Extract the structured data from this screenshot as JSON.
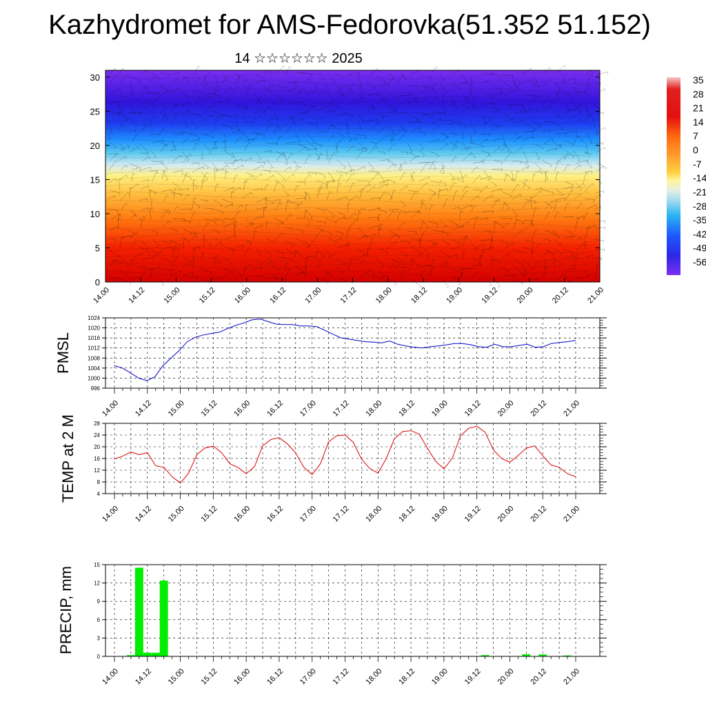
{
  "title": "Kazhydromet for AMS-Fedorovka(51.352 51.152)",
  "subtitle": "14 ☆☆☆☆☆☆ 2025",
  "colors": {
    "pmsl_line": "#0000cc",
    "temp_line": "#dd0000",
    "precip_bar": "#00ee00"
  },
  "chart_data": [
    {
      "type": "heatmap",
      "name": "cross-section",
      "xlabels": [
        "14.00",
        "14.12",
        "15.00",
        "15.12",
        "16.00",
        "16.12",
        "17.00",
        "17.12",
        "18.00",
        "18.12",
        "19.00",
        "19.12",
        "20.00",
        "20.12",
        "21.00"
      ],
      "yticks": [
        0,
        5,
        10,
        15,
        20,
        25,
        30
      ],
      "ylim": [
        0,
        31
      ],
      "colorbar_labels": [
        "35",
        "28",
        "21",
        "14",
        "7",
        "0",
        "-7",
        "-14",
        "-21",
        "-28",
        "-35",
        "-42",
        "-49",
        "-56"
      ]
    },
    {
      "type": "line",
      "name": "pmsl",
      "ylabel": "PMSL",
      "xlabels": [
        "14.00",
        "14.12",
        "15.00",
        "15.12",
        "16.00",
        "16.12",
        "17.00",
        "17.12",
        "18.00",
        "18.12",
        "19.00",
        "19.12",
        "20.00",
        "20.12",
        "21.00"
      ],
      "yticks": [
        996,
        1000,
        1004,
        1008,
        1012,
        1016,
        1020,
        1024
      ],
      "ylim": [
        996,
        1024
      ],
      "values": [
        1005.0,
        1004.0,
        1002.0,
        1000.0,
        999.0,
        1000.5,
        1005.0,
        1008.0,
        1011.0,
        1014.5,
        1016.3,
        1017.2,
        1017.8,
        1018.3,
        1019.8,
        1021.0,
        1022.0,
        1023.2,
        1023.5,
        1022.5,
        1021.5,
        1021.3,
        1021.3,
        1020.8,
        1020.8,
        1020.5,
        1019.0,
        1017.5,
        1016.0,
        1015.5,
        1015.0,
        1014.5,
        1014.3,
        1014.0,
        1014.8,
        1013.5,
        1012.8,
        1012.3,
        1012.0,
        1012.5,
        1012.8,
        1013.2,
        1013.8,
        1013.8,
        1013.3,
        1012.5,
        1012.3,
        1013.5,
        1012.5,
        1012.5,
        1013.0,
        1013.5,
        1012.3,
        1012.5,
        1013.8,
        1014.2,
        1014.5,
        1015.0
      ]
    },
    {
      "type": "line",
      "name": "temp",
      "ylabel": "TEMP at 2 M",
      "xlabels": [
        "14.00",
        "14.12",
        "15.00",
        "15.12",
        "16.00",
        "16.12",
        "17.00",
        "17.12",
        "18.00",
        "18.12",
        "19.00",
        "19.12",
        "20.00",
        "20.12",
        "21.00"
      ],
      "yticks": [
        4,
        8,
        12,
        16,
        20,
        24,
        28
      ],
      "ylim": [
        4,
        28
      ],
      "values": [
        15.8,
        16.8,
        18.2,
        17.3,
        18.0,
        13.5,
        13.0,
        9.8,
        7.6,
        11.0,
        17.3,
        19.6,
        20.2,
        18.0,
        14.2,
        12.9,
        10.8,
        13.2,
        20.3,
        22.5,
        23.1,
        21.0,
        17.9,
        13.0,
        10.5,
        14.2,
        21.7,
        23.8,
        24.0,
        21.5,
        15.8,
        12.6,
        11.0,
        16.0,
        22.8,
        25.2,
        25.5,
        24.3,
        19.5,
        15.0,
        12.5,
        16.0,
        23.7,
        26.3,
        27.0,
        25.0,
        19.0,
        16.0,
        14.7,
        17.0,
        19.5,
        20.3,
        17.0,
        13.8,
        13.0,
        10.8,
        9.8
      ]
    },
    {
      "type": "bar",
      "name": "precip",
      "ylabel": "PRECIP, mm",
      "xlabels": [
        "14.00",
        "14.12",
        "15.00",
        "15.12",
        "16.00",
        "16.12",
        "17.00",
        "17.12",
        "18.00",
        "18.12",
        "19.00",
        "19.12",
        "20.00",
        "20.12",
        "21.00"
      ],
      "yticks": [
        0,
        3,
        6,
        9,
        12,
        15
      ],
      "ylim": [
        0,
        15
      ],
      "values": [
        0,
        0,
        0.2,
        14.5,
        0.6,
        0.6,
        12.4,
        0,
        0,
        0,
        0,
        0,
        0,
        0,
        0,
        0,
        0,
        0,
        0,
        0,
        0,
        0,
        0,
        0,
        0,
        0,
        0,
        0,
        0,
        0,
        0,
        0,
        0,
        0,
        0,
        0,
        0,
        0,
        0,
        0,
        0,
        0,
        0,
        0,
        0,
        0.2,
        0,
        0,
        0,
        0,
        0.35,
        0,
        0.3,
        0,
        0,
        0.15,
        0
      ]
    }
  ]
}
